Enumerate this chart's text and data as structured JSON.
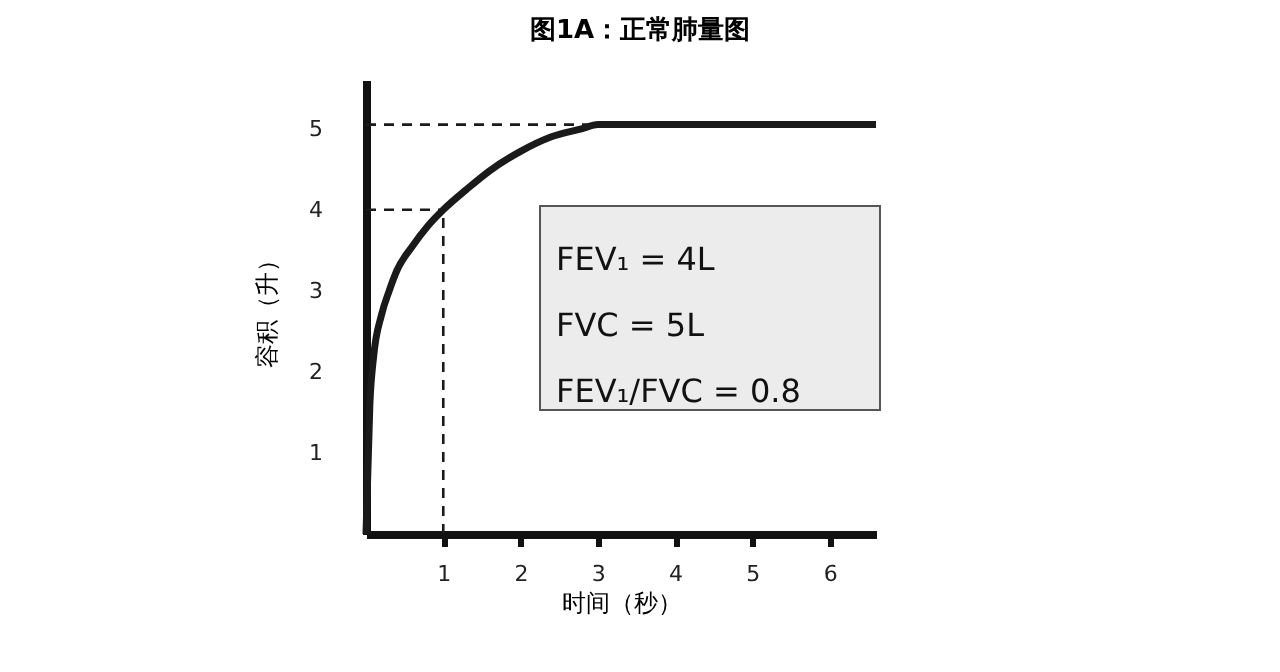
{
  "chart_data": {
    "type": "line",
    "title": "图1A：正常肺量图",
    "xlabel": "时间（秒）",
    "ylabel": "容积（升）",
    "xlim": [
      0,
      6.6
    ],
    "ylim": [
      0,
      5.6
    ],
    "xticks": [
      1,
      2,
      3,
      4,
      5,
      6
    ],
    "yticks": [
      1,
      2,
      3,
      4,
      5
    ],
    "grid": false,
    "legend": false,
    "marker": "none",
    "annotations": [
      "FEV₁ = 4L",
      "FVC  = 5L",
      "FEV₁/FVC = 0.8"
    ],
    "series": [
      {
        "color": "#1a1a1a",
        "line_style": "solid",
        "x": [
          0,
          0.05,
          0.1,
          0.2,
          0.3,
          0.4,
          0.6,
          0.8,
          1,
          1.3,
          1.6,
          2,
          2.4,
          2.8,
          3,
          4,
          5,
          6,
          6.6
        ],
        "values": [
          0,
          1.6,
          2.2,
          2.7,
          3.0,
          3.25,
          3.55,
          3.8,
          4.0,
          4.25,
          4.48,
          4.72,
          4.9,
          5.0,
          5.05,
          5.05,
          5.05,
          5.05,
          5.05
        ]
      },
      {
        "color": "#1a1a1a",
        "line_style": "dashed",
        "x": [
          0,
          1
        ],
        "values": [
          4,
          4
        ]
      },
      {
        "color": "#1a1a1a",
        "line_style": "dashed",
        "x": [
          1,
          1
        ],
        "values": [
          0,
          4
        ]
      },
      {
        "color": "#1a1a1a",
        "line_style": "dashed",
        "x": [
          0,
          3
        ],
        "values": [
          5.05,
          5.05
        ]
      }
    ]
  }
}
